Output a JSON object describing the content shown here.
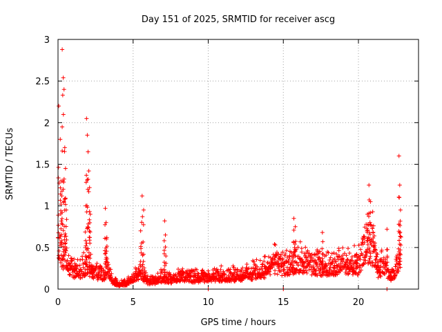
{
  "chart_data": {
    "type": "scatter",
    "title": "Day 151 of 2025, SRMTID for receiver ascg",
    "xlabel": "GPS time / hours",
    "ylabel": "SRMTID / TECUs",
    "xlim": [
      0,
      24
    ],
    "ylim": [
      0,
      3
    ],
    "xticks": [
      0,
      5,
      10,
      15,
      20
    ],
    "xtick_labels": [
      "0",
      "5",
      "10",
      "15",
      "20"
    ],
    "yticks": [
      0,
      0.5,
      1,
      1.5,
      2,
      2.5,
      3
    ],
    "ytick_labels": [
      "0",
      "0.5",
      "1",
      "1.5",
      "2",
      "2.5",
      "3"
    ],
    "grid": true,
    "marker": "+",
    "color": "#ff0000",
    "series": [
      {
        "name": "SRMTID",
        "profile": [
          [
            0.0,
            0.55
          ],
          [
            0.3,
            0.45
          ],
          [
            0.6,
            0.35
          ],
          [
            1.0,
            0.25
          ],
          [
            1.5,
            0.22
          ],
          [
            2.0,
            0.3
          ],
          [
            2.5,
            0.2
          ],
          [
            3.0,
            0.18
          ],
          [
            3.3,
            0.22
          ],
          [
            3.6,
            0.12
          ],
          [
            4.0,
            0.06
          ],
          [
            4.5,
            0.07
          ],
          [
            5.0,
            0.12
          ],
          [
            5.5,
            0.2
          ],
          [
            6.0,
            0.1
          ],
          [
            6.5,
            0.1
          ],
          [
            7.0,
            0.15
          ],
          [
            7.5,
            0.12
          ],
          [
            8.0,
            0.16
          ],
          [
            8.5,
            0.17
          ],
          [
            9.0,
            0.14
          ],
          [
            10.0,
            0.15
          ],
          [
            11.0,
            0.16
          ],
          [
            12.0,
            0.17
          ],
          [
            13.0,
            0.2
          ],
          [
            14.0,
            0.25
          ],
          [
            14.5,
            0.32
          ],
          [
            15.0,
            0.28
          ],
          [
            15.5,
            0.3
          ],
          [
            16.0,
            0.35
          ],
          [
            17.0,
            0.3
          ],
          [
            18.0,
            0.28
          ],
          [
            19.0,
            0.32
          ],
          [
            20.0,
            0.3
          ],
          [
            20.5,
            0.55
          ],
          [
            21.0,
            0.5
          ],
          [
            21.3,
            0.25
          ],
          [
            21.8,
            0.3
          ],
          [
            22.0,
            0.15
          ],
          [
            22.5,
            0.25
          ],
          [
            22.8,
            0.35
          ]
        ],
        "peaks": [
          [
            0.05,
            2.2
          ],
          [
            0.15,
            1.8
          ],
          [
            0.28,
            2.88
          ],
          [
            0.35,
            2.54
          ],
          [
            0.4,
            2.4
          ],
          [
            0.45,
            1.7
          ],
          [
            0.5,
            1.45
          ],
          [
            0.2,
            1.3
          ],
          [
            0.25,
            1.12
          ],
          [
            0.55,
            0.95
          ],
          [
            1.9,
            2.05
          ],
          [
            1.95,
            1.85
          ],
          [
            2.0,
            1.65
          ],
          [
            2.05,
            1.42
          ],
          [
            2.1,
            1.22
          ],
          [
            1.85,
            1.0
          ],
          [
            2.15,
            0.9
          ],
          [
            3.15,
            0.97
          ],
          [
            3.2,
            0.8
          ],
          [
            3.25,
            0.62
          ],
          [
            5.6,
            1.12
          ],
          [
            5.7,
            0.95
          ],
          [
            5.5,
            0.7
          ],
          [
            7.1,
            0.82
          ],
          [
            7.15,
            0.65
          ],
          [
            15.7,
            0.85
          ],
          [
            15.8,
            0.75
          ],
          [
            17.6,
            0.68
          ],
          [
            20.7,
            1.25
          ],
          [
            20.8,
            1.05
          ],
          [
            20.6,
            0.9
          ],
          [
            20.95,
            0.93
          ],
          [
            21.9,
            0.72
          ],
          [
            22.7,
            1.6
          ],
          [
            22.75,
            1.25
          ],
          [
            22.8,
            0.95
          ],
          [
            22.7,
            0.78
          ]
        ],
        "baseline": [
          [
            10.0,
            0.0
          ],
          [
            15.0,
            0.0
          ],
          [
            21.9,
            0.0
          ]
        ]
      }
    ]
  }
}
